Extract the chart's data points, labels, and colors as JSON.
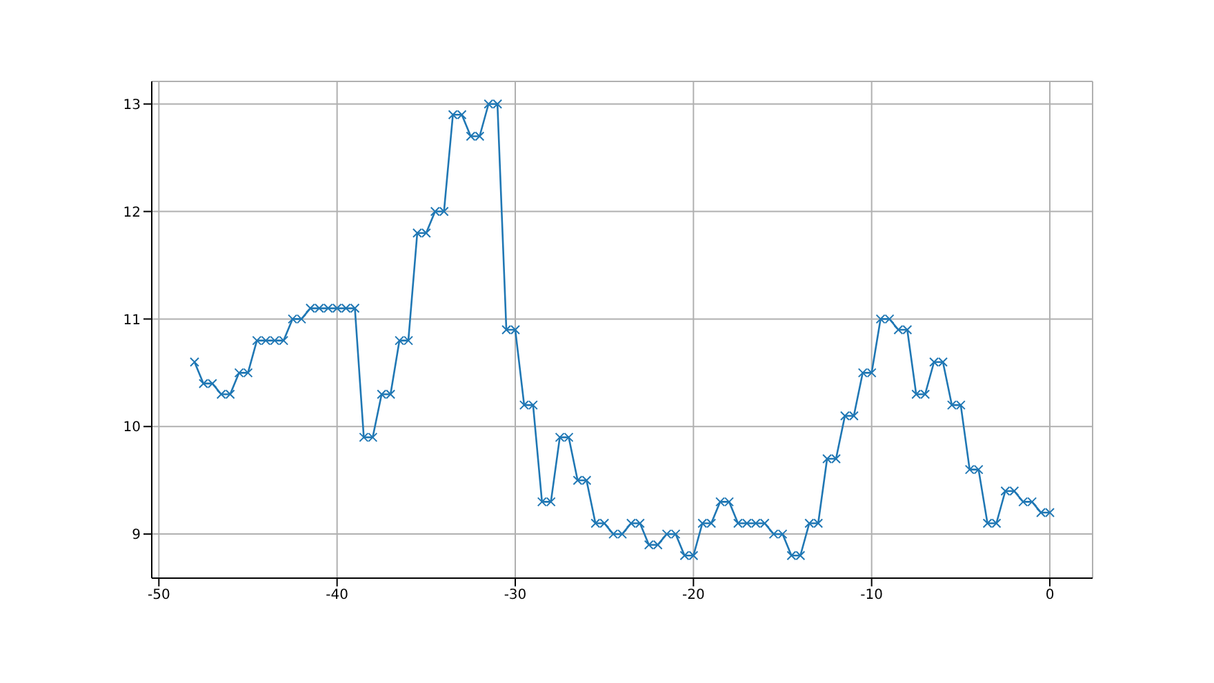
{
  "chart_data": {
    "type": "line",
    "x": [
      -48,
      -47.5,
      -47,
      -46.5,
      -46,
      -45.5,
      -45,
      -44.5,
      -44,
      -43.5,
      -43,
      -42.5,
      -42,
      -41.5,
      -41,
      -40.5,
      -40,
      -39.5,
      -39,
      -38.5,
      -38,
      -37.5,
      -37,
      -36.5,
      -36,
      -35.5,
      -35,
      -34.5,
      -34,
      -33.5,
      -33,
      -32.5,
      -32,
      -31.5,
      -31,
      -30.5,
      -30,
      -29.5,
      -29,
      -28.5,
      -28,
      -27.5,
      -27,
      -26.5,
      -26,
      -25.5,
      -25,
      -24.5,
      -24,
      -23.5,
      -23,
      -22.5,
      -22,
      -21.5,
      -21,
      -20.5,
      -20,
      -19.5,
      -19,
      -18.5,
      -18,
      -17.5,
      -17,
      -16.5,
      -16,
      -15.5,
      -15,
      -14.5,
      -14,
      -13.5,
      -13,
      -12.5,
      -12,
      -11.5,
      -11,
      -10.5,
      -10,
      -9.5,
      -9,
      -8.5,
      -8,
      -7.5,
      -7,
      -6.5,
      -6,
      -5.5,
      -5,
      -4.5,
      -4,
      -3.5,
      -3,
      -2.5,
      -2,
      -1.5,
      -1,
      -0.5,
      0
    ],
    "series": [
      {
        "color": "#1f77b4",
        "values": [
          10.6,
          10.4,
          10.4,
          10.3,
          10.3,
          10.5,
          10.5,
          10.8,
          10.8,
          10.8,
          10.8,
          11.0,
          11.0,
          11.1,
          11.1,
          11.1,
          11.1,
          11.1,
          11.1,
          9.9,
          9.9,
          10.3,
          10.3,
          10.8,
          10.8,
          11.8,
          11.8,
          12.0,
          12.0,
          12.9,
          12.9,
          12.7,
          12.7,
          13.0,
          13.0,
          10.9,
          10.9,
          10.2,
          10.2,
          9.3,
          9.3,
          9.9,
          9.9,
          9.5,
          9.5,
          9.1,
          9.1,
          9.0,
          9.0,
          9.1,
          9.1,
          8.9,
          8.9,
          9.0,
          9.0,
          8.8,
          8.8,
          9.1,
          9.1,
          9.3,
          9.3,
          9.1,
          9.1,
          9.1,
          9.1,
          9.0,
          9.0,
          8.8,
          8.8,
          9.1,
          9.1,
          9.7,
          9.7,
          10.1,
          10.1,
          10.5,
          10.5,
          11.0,
          11.0,
          10.9,
          10.9,
          10.3,
          10.3,
          10.6,
          10.6,
          10.2,
          10.2,
          9.6,
          9.6,
          9.1,
          9.1,
          9.4,
          9.4,
          9.3,
          9.3,
          9.2,
          9.2
        ]
      }
    ],
    "xlim": [
      -50.4,
      2.4
    ],
    "xticks": [
      -50,
      -40,
      -30,
      -20,
      -10,
      0
    ],
    "ylim": [
      8.59,
      13.21
    ],
    "yticks": [
      9,
      10,
      11,
      12,
      13
    ],
    "grid": true,
    "marker": "cross",
    "line_style": "solid"
  }
}
